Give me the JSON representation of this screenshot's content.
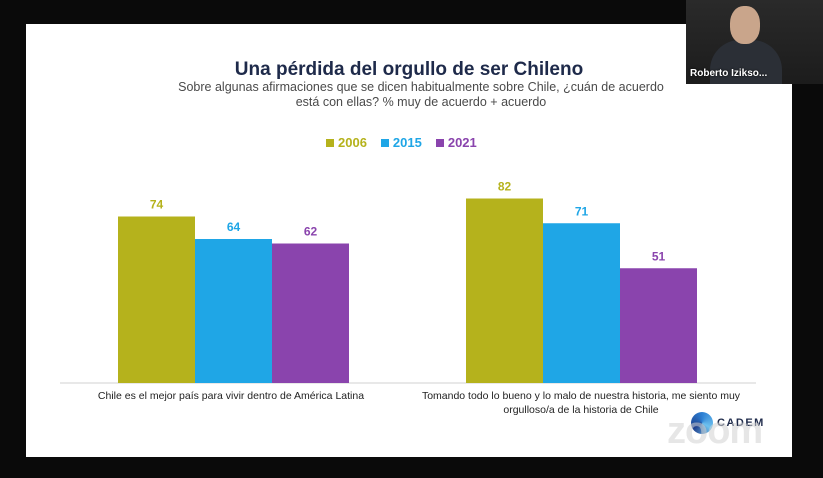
{
  "participant": {
    "name": "Roberto Iziksо..."
  },
  "slide": {
    "title": "Una pérdida del orgullo de ser Chileno",
    "subtitle": "Sobre algunas afirmaciones que se dicen habitualmente sobre Chile, ¿cuán de acuerdo está con ellas? % muy de acuerdo + acuerdo",
    "logo_text": "CADEM",
    "zoom_watermark": "zoom"
  },
  "colors": {
    "2006": "#b5b21c",
    "2015": "#1fa6e6",
    "2021": "#8a44ad"
  },
  "chart_data": {
    "type": "bar",
    "title": "Una pérdida del orgullo de ser Chileno",
    "categories": [
      "Chile es el mejor país para vivir dentro de América Latina",
      "Tomando todo lo bueno y lo malo de nuestra historia, me siento muy orgulloso/a de la historia de Chile"
    ],
    "series": [
      {
        "name": "2006",
        "values": [
          74,
          82
        ]
      },
      {
        "name": "2015",
        "values": [
          64,
          71
        ]
      },
      {
        "name": "2021",
        "values": [
          62,
          51
        ]
      }
    ],
    "legend": "top-center",
    "grid": false,
    "ylim": [
      0,
      100
    ]
  }
}
